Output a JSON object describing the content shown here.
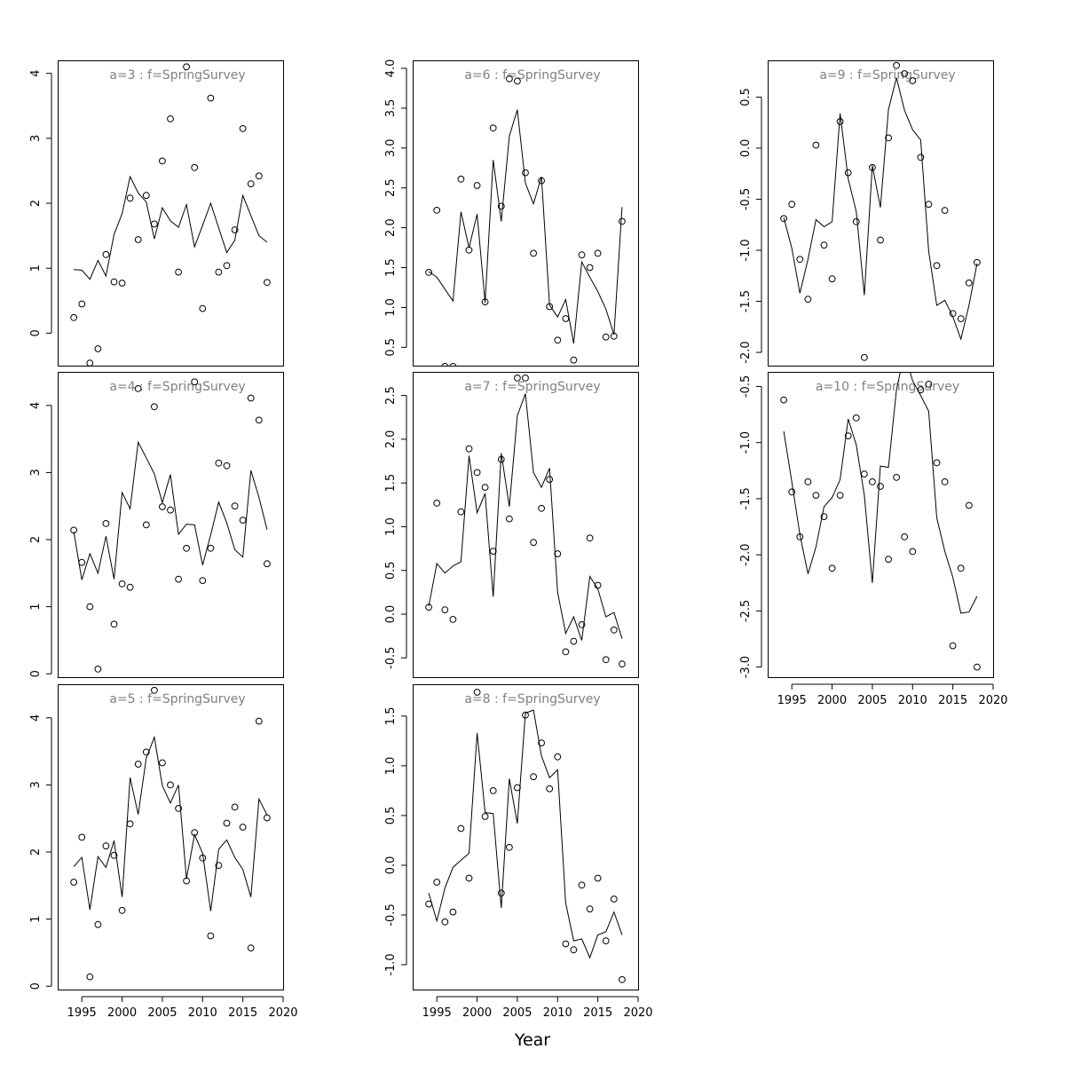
{
  "x_axis_title": "Year",
  "colors": {
    "panel_title": "#808080",
    "ink": "#000000",
    "background": "#ffffff"
  },
  "chart_data": [
    {
      "type": "line",
      "title": "a=3  :  f=SpringSurvey",
      "xlim": [
        1992,
        2020
      ],
      "ylim": [
        -0.5,
        4.2
      ],
      "x_ticks": [
        1995,
        2000,
        2005,
        2010,
        2015,
        2020
      ],
      "y_ticks": [
        0,
        1,
        2,
        3,
        4
      ],
      "x_tick_labels_shown": false,
      "x": [
        1994,
        1995,
        1996,
        1997,
        1998,
        1999,
        2000,
        2001,
        2002,
        2003,
        2004,
        2005,
        2006,
        2007,
        2008,
        2009,
        2010,
        2011,
        2012,
        2013,
        2014,
        2015,
        2016,
        2017,
        2018
      ],
      "series": [
        {
          "kind": "fitted-line",
          "values": [
            0.98,
            0.97,
            0.83,
            1.12,
            0.88,
            1.52,
            1.84,
            2.41,
            2.16,
            2.02,
            1.45,
            1.93,
            1.73,
            1.63,
            1.98,
            1.33,
            1.66,
            2.0,
            1.62,
            1.24,
            1.43,
            2.12,
            1.81,
            1.5,
            1.4
          ]
        },
        {
          "kind": "observed-points",
          "values": [
            0.24,
            0.45,
            -0.46,
            -0.24,
            1.21,
            0.79,
            0.77,
            2.08,
            1.44,
            2.12,
            1.68,
            2.65,
            3.3,
            0.94,
            4.1,
            2.55,
            0.38,
            3.62,
            0.94,
            1.04,
            1.59,
            3.15,
            2.3,
            2.42,
            0.78
          ]
        }
      ]
    },
    {
      "type": "line",
      "title": "a=4  :  f=SpringSurvey",
      "xlim": [
        1992,
        2020
      ],
      "ylim": [
        -0.05,
        4.5
      ],
      "x_ticks": [
        1995,
        2000,
        2005,
        2010,
        2015,
        2020
      ],
      "y_ticks": [
        0,
        1,
        2,
        3,
        4
      ],
      "x_tick_labels_shown": false,
      "x": [
        1994,
        1995,
        1996,
        1997,
        1998,
        1999,
        2000,
        2001,
        2002,
        2003,
        2004,
        2005,
        2006,
        2007,
        2008,
        2009,
        2010,
        2011,
        2012,
        2013,
        2014,
        2015,
        2016,
        2017,
        2018
      ],
      "series": [
        {
          "kind": "fitted-line",
          "values": [
            2.12,
            1.4,
            1.79,
            1.5,
            2.05,
            1.41,
            2.7,
            2.46,
            3.45,
            3.22,
            2.98,
            2.55,
            2.97,
            2.08,
            2.23,
            2.22,
            1.62,
            2.07,
            2.56,
            2.25,
            1.85,
            1.74,
            3.03,
            2.63,
            2.15
          ]
        },
        {
          "kind": "observed-points",
          "values": [
            2.14,
            1.66,
            1.0,
            0.07,
            2.24,
            0.74,
            1.34,
            1.29,
            4.25,
            2.22,
            3.98,
            2.49,
            2.44,
            1.41,
            1.87,
            4.35,
            1.39,
            1.87,
            3.14,
            3.1,
            2.5,
            2.29,
            4.11,
            3.78,
            1.64
          ]
        }
      ]
    },
    {
      "type": "line",
      "title": "a=5  :  f=SpringSurvey",
      "xlim": [
        1992,
        2020
      ],
      "ylim": [
        -0.05,
        4.5
      ],
      "x_ticks": [
        1995,
        2000,
        2005,
        2010,
        2015,
        2020
      ],
      "y_ticks": [
        0,
        1,
        2,
        3,
        4
      ],
      "x_tick_labels_shown": true,
      "x": [
        1994,
        1995,
        1996,
        1997,
        1998,
        1999,
        2000,
        2001,
        2002,
        2003,
        2004,
        2005,
        2006,
        2007,
        2008,
        2009,
        2010,
        2011,
        2012,
        2013,
        2014,
        2015,
        2016,
        2017,
        2018
      ],
      "series": [
        {
          "kind": "fitted-line",
          "values": [
            1.78,
            1.92,
            1.14,
            1.93,
            1.77,
            2.17,
            1.33,
            3.11,
            2.56,
            3.4,
            3.71,
            2.99,
            2.73,
            3.0,
            1.6,
            2.26,
            1.98,
            1.12,
            2.04,
            2.18,
            1.92,
            1.74,
            1.33,
            2.79,
            2.55
          ]
        },
        {
          "kind": "observed-points",
          "values": [
            1.55,
            2.22,
            0.14,
            0.92,
            2.09,
            1.95,
            1.13,
            2.42,
            3.31,
            3.49,
            4.41,
            3.33,
            3.0,
            2.65,
            1.57,
            2.29,
            1.91,
            0.75,
            1.8,
            2.43,
            2.67,
            2.37,
            0.57,
            3.95,
            2.51
          ]
        }
      ]
    },
    {
      "type": "line",
      "title": "a=6  :  f=SpringSurvey",
      "xlim": [
        1992,
        2020
      ],
      "ylim": [
        0.27,
        4.1
      ],
      "x_ticks": [
        1995,
        2000,
        2005,
        2010,
        2015,
        2020
      ],
      "y_ticks": [
        0.5,
        1.0,
        1.5,
        2.0,
        2.5,
        3.0,
        3.5,
        4.0
      ],
      "x_tick_labels_shown": false,
      "x": [
        1994,
        1995,
        1996,
        1997,
        1998,
        1999,
        2000,
        2001,
        2002,
        2003,
        2004,
        2005,
        2006,
        2007,
        2008,
        2009,
        2010,
        2011,
        2012,
        2013,
        2014,
        2015,
        2016,
        2017,
        2018
      ],
      "series": [
        {
          "kind": "fitted-line",
          "values": [
            1.45,
            1.38,
            1.23,
            1.08,
            2.2,
            1.75,
            2.17,
            1.06,
            2.85,
            2.08,
            3.15,
            3.48,
            2.56,
            2.3,
            2.64,
            1.03,
            0.88,
            1.1,
            0.55,
            1.57,
            1.38,
            1.2,
            0.98,
            0.66,
            2.26
          ]
        },
        {
          "kind": "observed-points",
          "values": [
            1.44,
            2.22,
            0.26,
            0.26,
            2.61,
            1.72,
            2.53,
            1.07,
            3.25,
            2.27,
            3.87,
            3.84,
            2.69,
            1.68,
            2.59,
            1.01,
            0.59,
            0.86,
            0.34,
            1.66,
            1.5,
            1.68,
            0.63,
            0.64,
            2.08
          ]
        }
      ]
    },
    {
      "type": "line",
      "title": "a=7  :  f=SpringSurvey",
      "xlim": [
        1992,
        2020
      ],
      "ylim": [
        -0.72,
        2.77
      ],
      "x_ticks": [
        1995,
        2000,
        2005,
        2010,
        2015,
        2020
      ],
      "y_ticks": [
        -0.5,
        0.0,
        0.5,
        1.0,
        1.5,
        2.0,
        2.5
      ],
      "x_tick_labels_shown": false,
      "x": [
        1994,
        1995,
        1996,
        1997,
        1998,
        1999,
        2000,
        2001,
        2002,
        2003,
        2004,
        2005,
        2006,
        2007,
        2008,
        2009,
        2010,
        2011,
        2012,
        2013,
        2014,
        2015,
        2016,
        2017,
        2018
      ],
      "series": [
        {
          "kind": "fitted-line",
          "values": [
            0.09,
            0.58,
            0.47,
            0.55,
            0.6,
            1.81,
            1.16,
            1.38,
            0.2,
            1.84,
            1.23,
            2.27,
            2.52,
            1.62,
            1.45,
            1.67,
            0.25,
            -0.22,
            -0.03,
            -0.3,
            0.43,
            0.29,
            -0.03,
            0.02,
            -0.28
          ]
        },
        {
          "kind": "observed-points",
          "values": [
            0.08,
            1.27,
            0.05,
            -0.06,
            1.17,
            1.89,
            1.62,
            1.45,
            0.72,
            1.77,
            1.09,
            2.7,
            2.7,
            0.82,
            1.21,
            1.54,
            0.69,
            -0.43,
            -0.31,
            -0.12,
            0.87,
            0.33,
            -0.52,
            -0.18,
            -0.57
          ]
        }
      ]
    },
    {
      "type": "line",
      "title": "a=8  :  f=SpringSurvey",
      "xlim": [
        1992,
        2020
      ],
      "ylim": [
        -1.25,
        1.82
      ],
      "x_ticks": [
        1995,
        2000,
        2005,
        2010,
        2015,
        2020
      ],
      "y_ticks": [
        -1.0,
        -0.5,
        0.0,
        0.5,
        1.0,
        1.5
      ],
      "x_tick_labels_shown": true,
      "x": [
        1994,
        1995,
        1996,
        1997,
        1998,
        1999,
        2000,
        2001,
        2002,
        2003,
        2004,
        2005,
        2006,
        2007,
        2008,
        2009,
        2010,
        2011,
        2012,
        2013,
        2014,
        2015,
        2016,
        2017,
        2018
      ],
      "series": [
        {
          "kind": "fitted-line",
          "values": [
            -0.28,
            -0.56,
            -0.23,
            -0.02,
            0.05,
            0.12,
            1.33,
            0.53,
            0.52,
            -0.43,
            0.87,
            0.42,
            1.53,
            1.56,
            1.1,
            0.88,
            0.96,
            -0.38,
            -0.76,
            -0.74,
            -0.93,
            -0.7,
            -0.67,
            -0.47,
            -0.7
          ]
        },
        {
          "kind": "observed-points",
          "values": [
            -0.39,
            -0.17,
            -0.57,
            -0.47,
            0.37,
            -0.13,
            1.74,
            0.49,
            0.75,
            -0.28,
            0.18,
            0.78,
            1.51,
            0.89,
            1.23,
            0.77,
            1.09,
            -0.79,
            -0.85,
            -0.2,
            -0.44,
            -0.13,
            -0.76,
            -0.34,
            -1.15
          ]
        }
      ]
    },
    {
      "type": "line",
      "title": "a=9  :  f=SpringSurvey",
      "xlim": [
        1992,
        2020
      ],
      "ylim": [
        -2.13,
        0.86
      ],
      "x_ticks": [
        1995,
        2000,
        2005,
        2010,
        2015,
        2020
      ],
      "y_ticks": [
        -2.0,
        -1.5,
        -1.0,
        -0.5,
        0.0,
        0.5
      ],
      "x_tick_labels_shown": false,
      "x": [
        1994,
        1995,
        1996,
        1997,
        1998,
        1999,
        2000,
        2001,
        2002,
        2003,
        2004,
        2005,
        2006,
        2007,
        2008,
        2009,
        2010,
        2011,
        2012,
        2013,
        2014,
        2015,
        2016,
        2017,
        2018
      ],
      "series": [
        {
          "kind": "fitted-line",
          "values": [
            -0.68,
            -0.98,
            -1.42,
            -1.09,
            -0.7,
            -0.77,
            -0.72,
            0.34,
            -0.3,
            -0.62,
            -1.44,
            -0.17,
            -0.58,
            0.38,
            0.69,
            0.37,
            0.18,
            0.08,
            -1.01,
            -1.54,
            -1.49,
            -1.65,
            -1.87,
            -1.54,
            -1.13
          ]
        },
        {
          "kind": "observed-points",
          "values": [
            -0.69,
            -0.55,
            -1.09,
            -1.48,
            0.03,
            -0.95,
            -1.28,
            0.26,
            -0.24,
            -0.72,
            -2.05,
            -0.19,
            -0.9,
            0.1,
            0.81,
            0.73,
            0.66,
            -0.09,
            -0.55,
            -1.15,
            -0.61,
            -1.62,
            -1.67,
            -1.32,
            -1.12
          ]
        }
      ]
    },
    {
      "type": "line",
      "title": "a=10  :  f=SpringSurvey",
      "xlim": [
        1992,
        2020
      ],
      "ylim": [
        -3.09,
        -0.37
      ],
      "x_ticks": [
        1995,
        2000,
        2005,
        2010,
        2015,
        2020
      ],
      "y_ticks": [
        -3.0,
        -2.5,
        -2.0,
        -1.5,
        -1.0,
        -0.5
      ],
      "x_tick_labels_shown": true,
      "x": [
        1994,
        1995,
        1996,
        1997,
        1998,
        1999,
        2000,
        2001,
        2002,
        2003,
        2004,
        2005,
        2006,
        2007,
        2008,
        2009,
        2010,
        2011,
        2012,
        2013,
        2014,
        2015,
        2016,
        2017,
        2018
      ],
      "series": [
        {
          "kind": "fitted-line",
          "values": [
            -0.9,
            -1.35,
            -1.82,
            -2.17,
            -1.93,
            -1.57,
            -1.49,
            -1.33,
            -0.79,
            -1.02,
            -1.47,
            -2.25,
            -1.21,
            -1.22,
            -0.53,
            -0.2,
            -0.45,
            -0.58,
            -0.72,
            -1.67,
            -1.97,
            -2.2,
            -2.52,
            -2.51,
            -2.37
          ]
        },
        {
          "kind": "observed-points",
          "values": [
            -0.62,
            -1.44,
            -1.84,
            -1.35,
            -1.47,
            -1.66,
            -2.12,
            -1.47,
            -0.94,
            -0.78,
            -1.28,
            -1.35,
            -1.39,
            -2.04,
            -1.31,
            -1.84,
            -1.97,
            -0.53,
            -0.48,
            -1.18,
            -1.35,
            -2.81,
            -2.12,
            -1.56,
            -3.0
          ]
        }
      ]
    }
  ]
}
